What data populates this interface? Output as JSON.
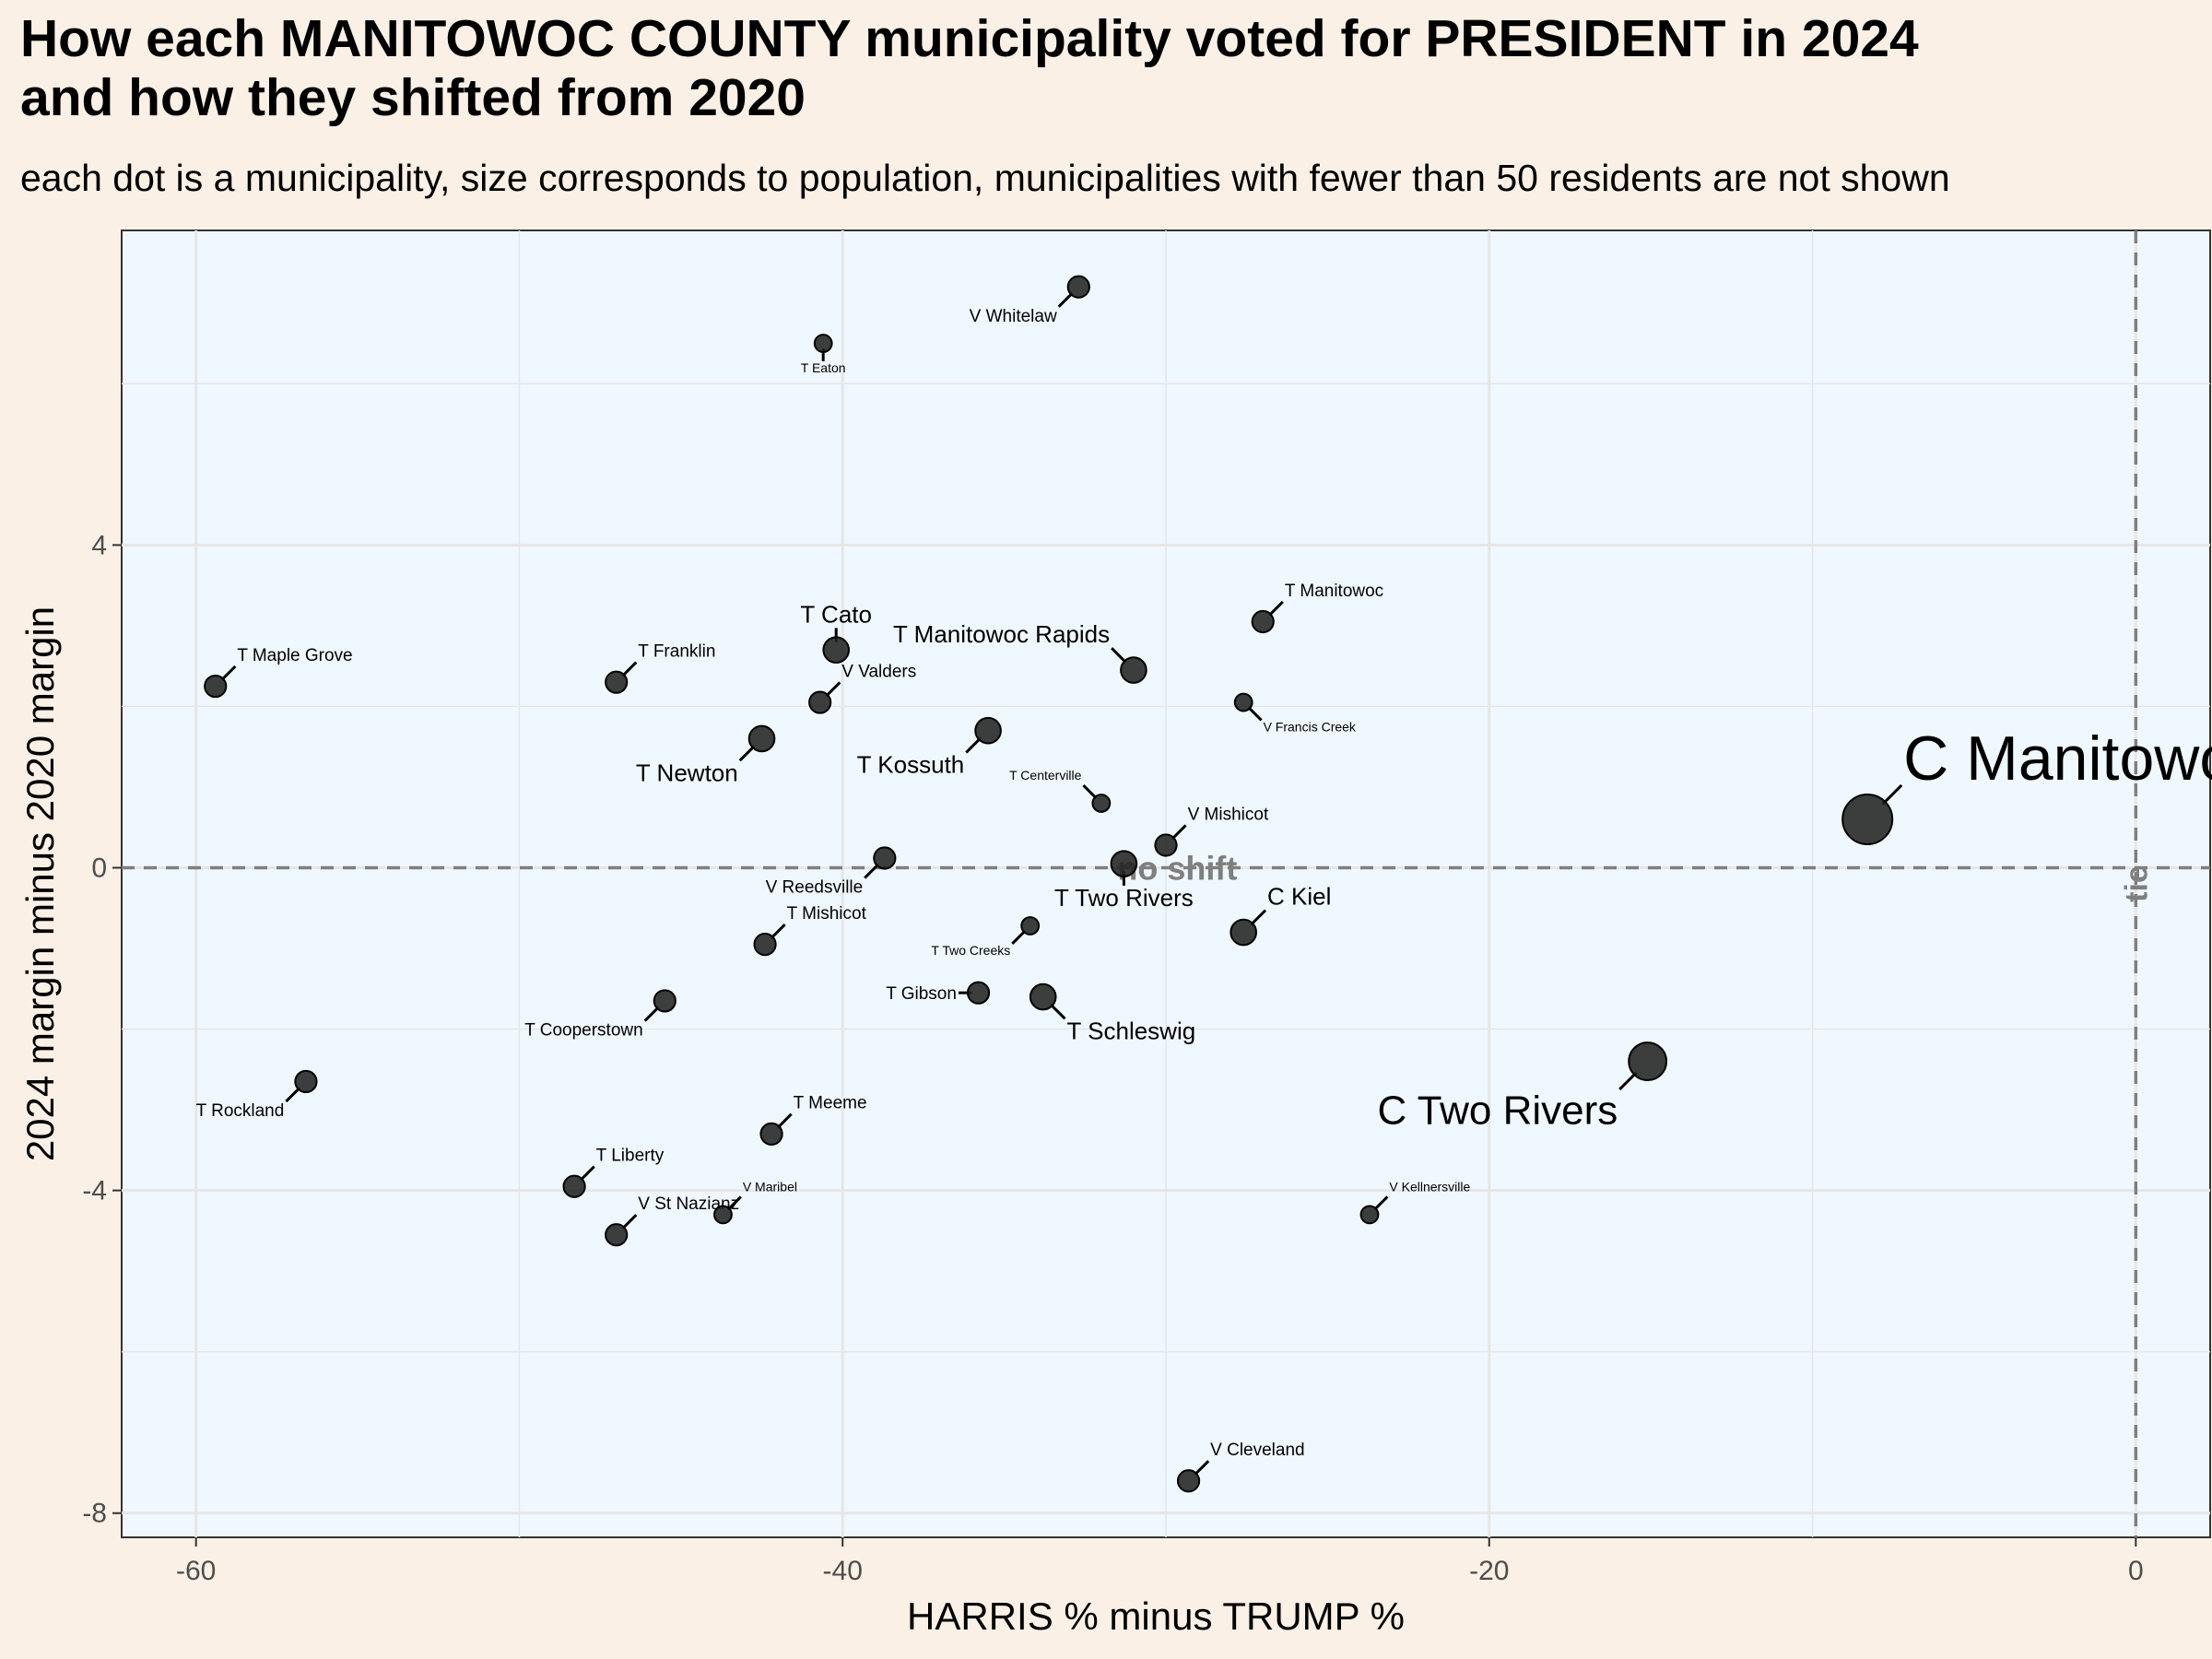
{
  "title": "How each MANITOWOC COUNTY municipality voted for PRESIDENT in 2024\nand how they shifted from 2020",
  "subtitle": "each dot is a municipality, size corresponds to population, municipalities with fewer than 50 residents are not shown",
  "colors": {
    "page_background": "#faf0e6",
    "panel_background": "#f0f8ff",
    "grid": "#e6e6e6",
    "points": "#222222",
    "reference_lines": "#7f7f7f"
  },
  "chart_data": {
    "type": "scatter",
    "xlabel": "HARRIS % minus TRUMP %",
    "ylabel": "2024 margin minus 2020 margin",
    "xlim": [
      -62.3,
      2.3
    ],
    "ylim": [
      -8.3,
      7.9
    ],
    "x_ticks": [
      -60,
      -40,
      -20,
      0
    ],
    "y_ticks": [
      -8,
      -4,
      0,
      4
    ],
    "x_tick_labels": [
      "-60",
      "-40",
      "-20",
      "0"
    ],
    "y_tick_labels": [
      "-8",
      "-4",
      "0",
      "4"
    ],
    "grid": true,
    "reference_lines": [
      {
        "axis": "y",
        "value": 0,
        "style": "dashed",
        "label": "no shift"
      },
      {
        "axis": "x",
        "value": 0,
        "style": "dashed",
        "label": "tie"
      }
    ],
    "points": [
      {
        "name": "C Manitowoc",
        "x": -8.3,
        "y": 0.6,
        "size": 10,
        "label_side": "ne"
      },
      {
        "name": "C Two Rivers",
        "x": -15.1,
        "y": -2.4,
        "size": 7,
        "label_side": "sw"
      },
      {
        "name": "C Kiel",
        "x": -27.6,
        "y": -0.8,
        "size": 4,
        "label_side": "ne"
      },
      {
        "name": "V Whitelaw",
        "x": -32.7,
        "y": 7.2,
        "size": 3,
        "label_side": "sw"
      },
      {
        "name": "T Eaton",
        "x": -40.6,
        "y": 6.5,
        "size": 2,
        "label_side": "s"
      },
      {
        "name": "T Manitowoc",
        "x": -27.0,
        "y": 3.05,
        "size": 3,
        "label_side": "ne"
      },
      {
        "name": "T Manitowoc Rapids",
        "x": -31.0,
        "y": 2.45,
        "size": 4,
        "label_side": "nw"
      },
      {
        "name": "V Francis Creek",
        "x": -27.6,
        "y": 2.05,
        "size": 2,
        "label_side": "se"
      },
      {
        "name": "T Maple Grove",
        "x": -59.4,
        "y": 2.25,
        "size": 3,
        "label_side": "ne"
      },
      {
        "name": "T Franklin",
        "x": -47.0,
        "y": 2.3,
        "size": 3,
        "label_side": "ne"
      },
      {
        "name": "T Cato",
        "x": -40.2,
        "y": 2.7,
        "size": 4,
        "label_side": "n"
      },
      {
        "name": "V Valders",
        "x": -40.7,
        "y": 2.05,
        "size": 3,
        "label_side": "ne"
      },
      {
        "name": "T Newton",
        "x": -42.5,
        "y": 1.6,
        "size": 4,
        "label_side": "sw"
      },
      {
        "name": "T Kossuth",
        "x": -35.5,
        "y": 1.7,
        "size": 4,
        "label_side": "sw"
      },
      {
        "name": "T Centerville",
        "x": -32.0,
        "y": 0.8,
        "size": 2,
        "label_side": "nw"
      },
      {
        "name": "V Mishicot",
        "x": -30.0,
        "y": 0.28,
        "size": 3,
        "label_side": "ne"
      },
      {
        "name": "T Two Rivers",
        "x": -31.3,
        "y": 0.05,
        "size": 4,
        "label_side": "s"
      },
      {
        "name": "V Reedsville",
        "x": -38.7,
        "y": 0.12,
        "size": 3,
        "label_side": "sw"
      },
      {
        "name": "T Mishicot",
        "x": -42.4,
        "y": -0.95,
        "size": 3,
        "label_side": "ne"
      },
      {
        "name": "T Two Creeks",
        "x": -34.2,
        "y": -0.72,
        "size": 2,
        "label_side": "sw"
      },
      {
        "name": "T Gibson",
        "x": -35.8,
        "y": -1.55,
        "size": 3,
        "label_side": "w"
      },
      {
        "name": "T Schleswig",
        "x": -33.8,
        "y": -1.6,
        "size": 4,
        "label_side": "se"
      },
      {
        "name": "T Cooperstown",
        "x": -45.5,
        "y": -1.65,
        "size": 3,
        "label_side": "sw"
      },
      {
        "name": "T Rockland",
        "x": -56.6,
        "y": -2.65,
        "size": 3,
        "label_side": "sw"
      },
      {
        "name": "T Meeme",
        "x": -42.2,
        "y": -3.3,
        "size": 3,
        "label_side": "ne"
      },
      {
        "name": "T Liberty",
        "x": -48.3,
        "y": -3.95,
        "size": 3,
        "label_side": "ne"
      },
      {
        "name": "V St Nazianz",
        "x": -47.0,
        "y": -4.55,
        "size": 3,
        "label_side": "ne"
      },
      {
        "name": "V Maribel",
        "x": -43.7,
        "y": -4.3,
        "size": 2,
        "label_side": "ne"
      },
      {
        "name": "V Kellnersville",
        "x": -23.7,
        "y": -4.3,
        "size": 2,
        "label_side": "ne"
      },
      {
        "name": "V Cleveland",
        "x": -29.3,
        "y": -7.6,
        "size": 3,
        "label_side": "ne"
      }
    ]
  }
}
